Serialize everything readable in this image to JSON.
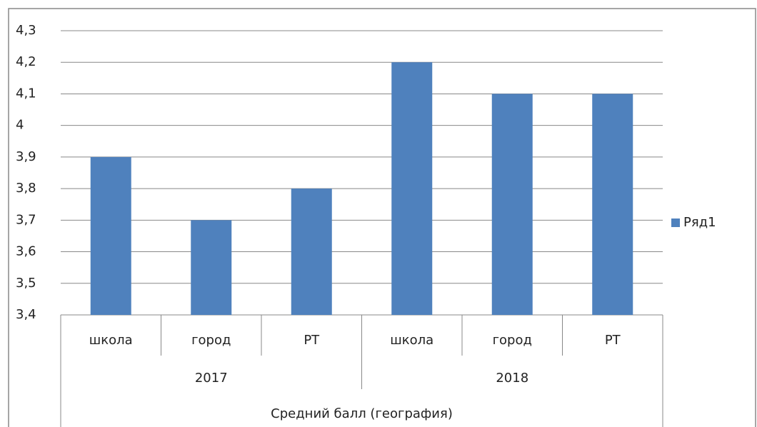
{
  "chart_data": {
    "type": "bar",
    "categories": [
      "школа",
      "город",
      "РТ",
      "школа",
      "город",
      "РТ"
    ],
    "groups": [
      "2017",
      "2018"
    ],
    "x_label": "Средний балл (география)",
    "series": [
      {
        "name": "Ряд1",
        "color": "#4f81bd",
        "values": [
          3.9,
          3.7,
          3.8,
          4.2,
          4.1,
          4.1
        ]
      }
    ],
    "ylim": [
      3.4,
      4.3
    ],
    "yticks": [
      {
        "value": 3.4,
        "label": "3,4"
      },
      {
        "value": 3.5,
        "label": "3,5"
      },
      {
        "value": 3.6,
        "label": "3,6"
      },
      {
        "value": 3.7,
        "label": "3,7"
      },
      {
        "value": 3.8,
        "label": "3,8"
      },
      {
        "value": 3.9,
        "label": "3,9"
      },
      4,
      {
        "value": 4.1,
        "label": "4,1"
      },
      {
        "value": 4.2,
        "label": "4,2"
      },
      {
        "value": 4.3,
        "label": "4,3"
      }
    ],
    "grid": true,
    "legend": "right"
  }
}
